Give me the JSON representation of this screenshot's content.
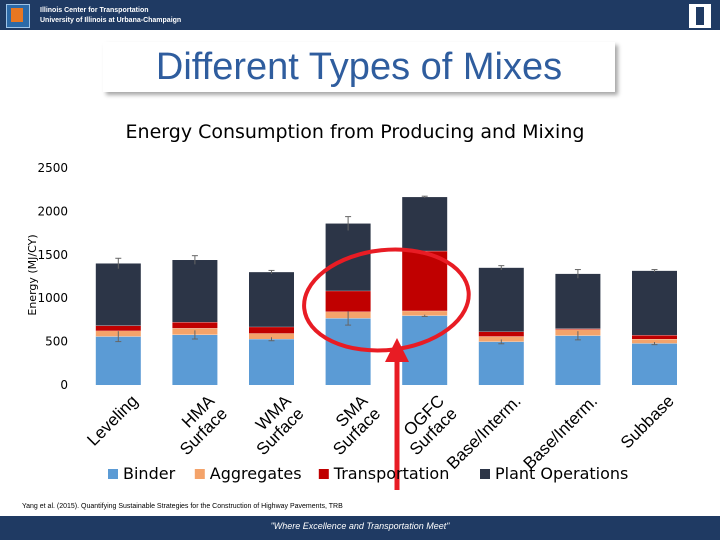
{
  "header": {
    "line1": "Illinois Center for Transportation",
    "line2": "University of Illinois at Urbana-Champaign"
  },
  "slide_title": "Different Types of Mixes",
  "citation": "Yang et al. (2015). Quantifying Sustainable Strategies for the Construction of Highway Pavements, TRB",
  "footer_text": "\"Where Excellence and Transportation Meet\"",
  "colors": {
    "binder": "#5b9bd5",
    "aggregates": "#f4a36a",
    "transportation": "#c00000",
    "plant": "#2c3547",
    "highlight": "#e81c24"
  },
  "chart_data": {
    "type": "bar",
    "stacked": true,
    "title": "Energy Consumption from Producing and Mixing",
    "ylabel": "Energy (MJ/CY)",
    "xlabel": "",
    "ylim": [
      0,
      2500
    ],
    "yticks": [
      0,
      500,
      1000,
      1500,
      2000,
      2500
    ],
    "grid": false,
    "legend_position": "bottom",
    "categories": [
      "Leveling",
      "HMA Surface",
      "WMA Surface",
      "SMA Surface",
      "OGFC Surface",
      "Base/Interm.",
      "Base/Interm.",
      "Subbase"
    ],
    "series": [
      {
        "name": "Binder",
        "color_key": "binder",
        "values": [
          560,
          580,
          530,
          770,
          800,
          500,
          570,
          480
        ]
      },
      {
        "name": "Aggregates",
        "color_key": "aggregates",
        "values": [
          65,
          75,
          65,
          75,
          55,
          60,
          70,
          50
        ]
      },
      {
        "name": "Transportation",
        "color_key": "transportation",
        "values": [
          60,
          70,
          75,
          240,
          690,
          55,
          10,
          45
        ]
      },
      {
        "name": "Plant Operations",
        "color_key": "plant",
        "values": [
          715,
          715,
          630,
          775,
          620,
          735,
          630,
          740
        ]
      }
    ],
    "error_bars": [
      60,
      50,
      20,
      80,
      10,
      25,
      50,
      15
    ],
    "highlighted_categories": [
      "SMA Surface",
      "OGFC Surface"
    ]
  }
}
